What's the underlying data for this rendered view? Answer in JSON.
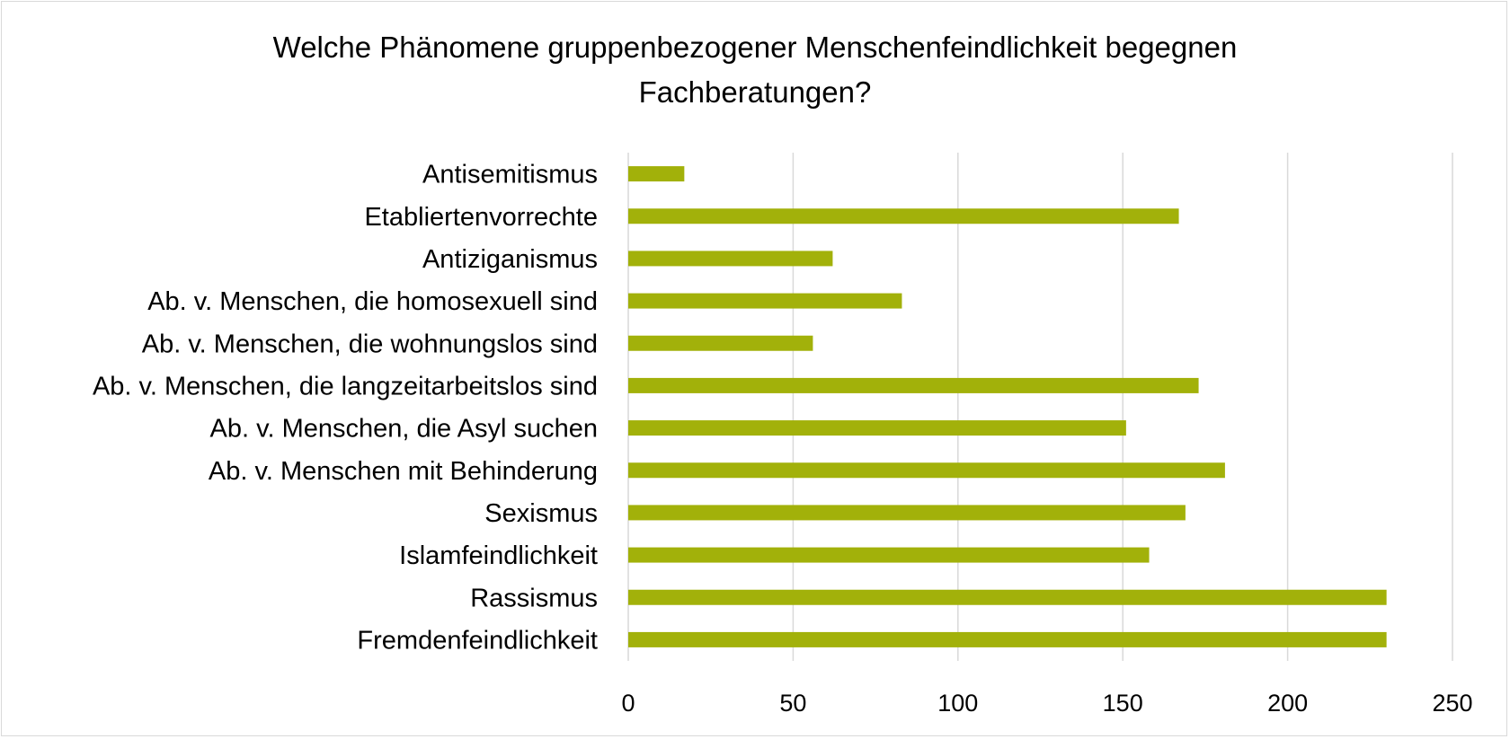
{
  "chart_data": {
    "type": "bar",
    "orientation": "horizontal",
    "title_lines": [
      "Welche Phänomene gruppenbezogener Menschenfeindlichkeit begegnen",
      "Fachberatungen?"
    ],
    "categories": [
      "Antisemitismus",
      "Etabliertenvorrechte",
      "Antiziganismus",
      "Ab. v. Menschen, die homosexuell sind",
      "Ab. v. Menschen, die wohnungslos sind",
      "Ab. v. Menschen, die langzeitarbeitslos sind",
      "Ab. v. Menschen, die Asyl suchen",
      "Ab. v. Menschen mit Behinderung",
      "Sexismus",
      "Islamfeindlichkeit",
      "Rassismus",
      "Fremdenfeindlichkeit"
    ],
    "values": [
      17,
      167,
      62,
      83,
      56,
      173,
      151,
      181,
      169,
      158,
      230,
      230
    ],
    "xlim": [
      0,
      250
    ],
    "xticks": [
      0,
      50,
      100,
      150,
      200,
      250
    ],
    "xtick_labels": [
      "0",
      "50",
      "100",
      "150",
      "200",
      "250"
    ],
    "grid": true,
    "legend": "none",
    "bar_color": "#a2b10a",
    "gridline_color": "#d9d9d9",
    "xlabel": "",
    "ylabel": ""
  }
}
